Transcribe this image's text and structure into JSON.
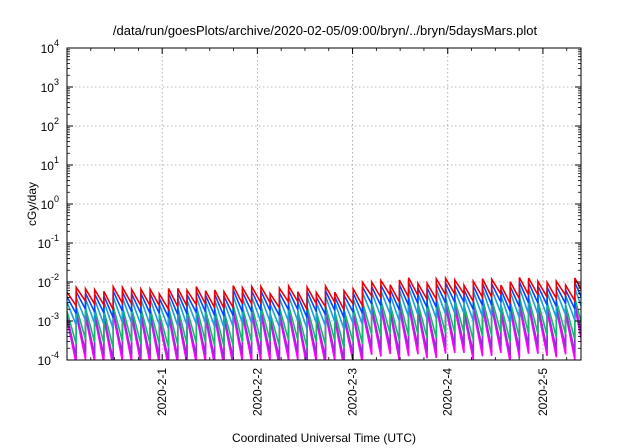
{
  "chart_data": {
    "type": "line",
    "title": "/data/run/goesPlots/archive/2020-02-05/09:00/bryn/../bryn/5daysMars.plot",
    "xlabel": "Coordinated Universal Time (UTC)",
    "ylabel": "cGy/day",
    "x_range_days": [
      0,
      5.4
    ],
    "x_start": "2020-02-01",
    "xticks": [
      {
        "label": "2020-2-1",
        "day": 1
      },
      {
        "label": "2020-2-2",
        "day": 2
      },
      {
        "label": "2020-2-3",
        "day": 3
      },
      {
        "label": "2020-2-4",
        "day": 4
      },
      {
        "label": "2020-2-5",
        "day": 5
      }
    ],
    "y_scale": "log",
    "ylim": [
      0.0001,
      10000
    ],
    "yticks": [
      {
        "base": "10",
        "exp": "-4",
        "value": 0.0001
      },
      {
        "base": "10",
        "exp": "-3",
        "value": 0.001
      },
      {
        "base": "10",
        "exp": "-2",
        "value": 0.01
      },
      {
        "base": "10",
        "exp": "-1",
        "value": 0.1
      },
      {
        "base": "10",
        "exp": "0",
        "value": 1
      },
      {
        "base": "10",
        "exp": "1",
        "value": 10
      },
      {
        "base": "10",
        "exp": "2",
        "value": 100
      },
      {
        "base": "10",
        "exp": "3",
        "value": 1000
      },
      {
        "base": "10",
        "exp": "4",
        "value": 10000
      }
    ],
    "grid": true,
    "sawtooth_period_days": 0.097,
    "series": [
      {
        "color": "#e8000b",
        "peak_first_half": 0.0065,
        "peak_second_half": 0.0105,
        "decay_ratio": 2.6
      },
      {
        "color": "#0047ff",
        "peak_first_half": 0.005,
        "peak_second_half": 0.008,
        "decay_ratio": 3.2
      },
      {
        "color": "#1b9fd6",
        "peak_first_half": 0.0036,
        "peak_second_half": 0.0058,
        "decay_ratio": 4.5
      },
      {
        "color": "#15b86a",
        "peak_first_half": 0.0021,
        "peak_second_half": 0.0033,
        "decay_ratio": 8
      },
      {
        "color": "#9a2bd8",
        "peak_first_half": 0.0016,
        "peak_second_half": 0.0025,
        "decay_ratio": 13
      },
      {
        "color": "#ff00ff",
        "peak_first_half": 0.0013,
        "peak_second_half": 0.002,
        "decay_ratio": 16
      }
    ]
  }
}
